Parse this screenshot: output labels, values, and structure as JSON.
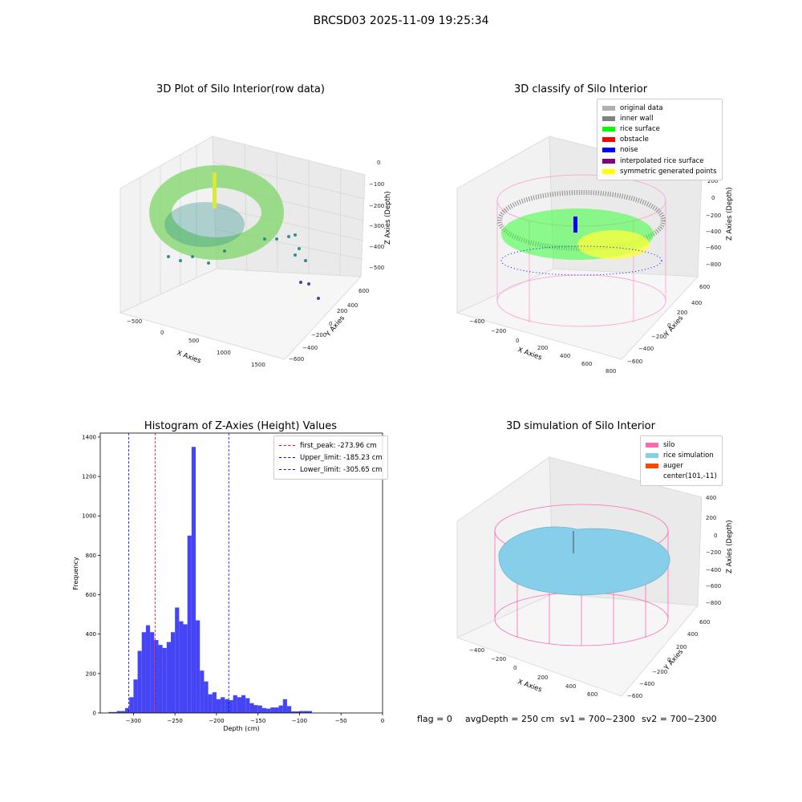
{
  "suptitle": "BRCSD03 2025-11-09 19:25:34",
  "panel1": {
    "title": "3D Plot of Silo Interior(row data)",
    "xlabel": "X Axies",
    "ylabel": "Y Axies",
    "zlabel": "Z Axies (Depth)",
    "xticks": [
      "−500",
      "0",
      "500",
      "1000",
      "1500"
    ],
    "yticks": [
      "600",
      "400",
      "200",
      "0",
      "−200",
      "−400",
      "−600"
    ],
    "zticks": [
      "0",
      "−100",
      "−200",
      "−300",
      "−400",
      "−500"
    ]
  },
  "panel2": {
    "title": "3D classify of Silo Interior",
    "xlabel": "X Axies",
    "ylabel": "Y Axies",
    "zlabel": "Z Axies (Depth)",
    "xticks": [
      "−400",
      "−200",
      "0",
      "200",
      "400",
      "600",
      "800"
    ],
    "yticks": [
      "600",
      "400",
      "200",
      "0",
      "−200",
      "−400",
      "−600"
    ],
    "zticks": [
      "200",
      "0",
      "−200",
      "−400",
      "−600",
      "−800"
    ],
    "legend": [
      {
        "label": "original data",
        "color": "#b0b0b0"
      },
      {
        "label": "inner wall",
        "color": "#808080"
      },
      {
        "label": "rice surface",
        "color": "#00ff00"
      },
      {
        "label": "obstacle",
        "color": "#ff0000"
      },
      {
        "label": "noise",
        "color": "#0000ff"
      },
      {
        "label": "interpolated rice surface",
        "color": "#800080"
      },
      {
        "label": "symmetric generated points",
        "color": "#ffff00"
      }
    ]
  },
  "panel3": {
    "title": "3D simulation of Silo Interior",
    "xlabel": "X Axies",
    "ylabel": "Y Axies",
    "zlabel": "Z Axies (Depth)",
    "xticks": [
      "−400",
      "−200",
      "0",
      "200",
      "400",
      "600"
    ],
    "yticks": [
      "600",
      "400",
      "200",
      "0",
      "−200",
      "−400",
      "−600"
    ],
    "zticks": [
      "400",
      "200",
      "0",
      "−200",
      "−400",
      "−600",
      "−800"
    ],
    "legend": [
      {
        "label": "silo",
        "color": "#ff69b4"
      },
      {
        "label": "rice simulation",
        "color": "#87ceeb"
      },
      {
        "label": "auger",
        "color": "#ff4500"
      },
      {
        "label": "center(101,-11)",
        "color": ""
      }
    ]
  },
  "footer": {
    "flag": "flag = 0",
    "avg": "avgDepth = 250 cm  sv1 = 700~2300",
    "sv2": "sv2 = 700~2300"
  },
  "chart_data": [
    {
      "type": "histogram",
      "title": "Histogram of Z-Axies (Height) Values",
      "xlabel": "Depth (cm)",
      "ylabel": "Frequency",
      "xlim": [
        -340,
        0
      ],
      "ylim": [
        0,
        1420
      ],
      "xticks": [
        -300,
        -250,
        -200,
        -150,
        -100,
        -50,
        0
      ],
      "yticks": [
        0,
        200,
        400,
        600,
        800,
        1000,
        1200,
        1400
      ],
      "bar_color": "#4545f5",
      "bins": [
        {
          "x0": -330,
          "x1": -320,
          "count": 5
        },
        {
          "x0": -320,
          "x1": -315,
          "count": 10
        },
        {
          "x0": -315,
          "x1": -310,
          "count": 10
        },
        {
          "x0": -310,
          "x1": -305,
          "count": 25
        },
        {
          "x0": -305,
          "x1": -300,
          "count": 80
        },
        {
          "x0": -300,
          "x1": -295,
          "count": 170
        },
        {
          "x0": -295,
          "x1": -290,
          "count": 315
        },
        {
          "x0": -290,
          "x1": -285,
          "count": 410
        },
        {
          "x0": -285,
          "x1": -280,
          "count": 445
        },
        {
          "x0": -280,
          "x1": -275,
          "count": 410
        },
        {
          "x0": -275,
          "x1": -270,
          "count": 370
        },
        {
          "x0": -270,
          "x1": -265,
          "count": 345
        },
        {
          "x0": -265,
          "x1": -260,
          "count": 330
        },
        {
          "x0": -260,
          "x1": -255,
          "count": 360
        },
        {
          "x0": -255,
          "x1": -250,
          "count": 410
        },
        {
          "x0": -250,
          "x1": -245,
          "count": 535
        },
        {
          "x0": -245,
          "x1": -240,
          "count": 465
        },
        {
          "x0": -240,
          "x1": -235,
          "count": 450
        },
        {
          "x0": -235,
          "x1": -230,
          "count": 900
        },
        {
          "x0": -230,
          "x1": -225,
          "count": 1350
        },
        {
          "x0": -225,
          "x1": -220,
          "count": 470
        },
        {
          "x0": -220,
          "x1": -215,
          "count": 215
        },
        {
          "x0": -215,
          "x1": -210,
          "count": 160
        },
        {
          "x0": -210,
          "x1": -205,
          "count": 95
        },
        {
          "x0": -205,
          "x1": -200,
          "count": 105
        },
        {
          "x0": -200,
          "x1": -195,
          "count": 70
        },
        {
          "x0": -195,
          "x1": -190,
          "count": 80
        },
        {
          "x0": -190,
          "x1": -185,
          "count": 70
        },
        {
          "x0": -185,
          "x1": -180,
          "count": 65
        },
        {
          "x0": -180,
          "x1": -175,
          "count": 90
        },
        {
          "x0": -175,
          "x1": -170,
          "count": 80
        },
        {
          "x0": -170,
          "x1": -165,
          "count": 90
        },
        {
          "x0": -165,
          "x1": -160,
          "count": 75
        },
        {
          "x0": -160,
          "x1": -155,
          "count": 50
        },
        {
          "x0": -155,
          "x1": -150,
          "count": 40
        },
        {
          "x0": -150,
          "x1": -145,
          "count": 38
        },
        {
          "x0": -145,
          "x1": -140,
          "count": 25
        },
        {
          "x0": -140,
          "x1": -135,
          "count": 22
        },
        {
          "x0": -135,
          "x1": -130,
          "count": 28
        },
        {
          "x0": -130,
          "x1": -125,
          "count": 28
        },
        {
          "x0": -125,
          "x1": -120,
          "count": 38
        },
        {
          "x0": -120,
          "x1": -115,
          "count": 70
        },
        {
          "x0": -115,
          "x1": -110,
          "count": 35
        },
        {
          "x0": -110,
          "x1": -105,
          "count": 8
        },
        {
          "x0": -105,
          "x1": -100,
          "count": 8
        },
        {
          "x0": -100,
          "x1": -95,
          "count": 10
        },
        {
          "x0": -95,
          "x1": -90,
          "count": 10
        },
        {
          "x0": -90,
          "x1": -85,
          "count": 10
        }
      ],
      "vlines": [
        {
          "label": "first_peak: -273.96 cm",
          "x": -273.96,
          "color": "#ff0000"
        },
        {
          "label": "Upper_limit: -185.23 cm",
          "x": -185.23,
          "color": "#0000ff"
        },
        {
          "label": "Lower_limit: -305.65 cm",
          "x": -305.65,
          "color": "#0000ff"
        }
      ]
    }
  ]
}
